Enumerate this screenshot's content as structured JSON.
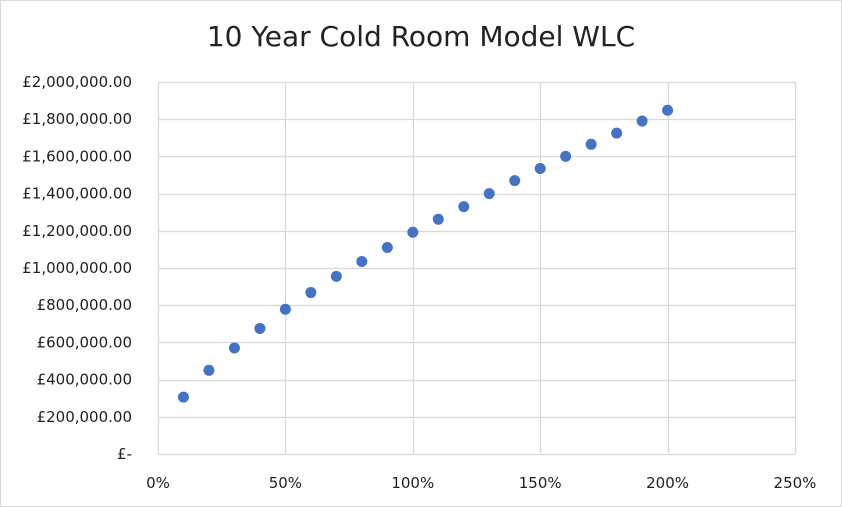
{
  "colors": {
    "marker": "#4472c4",
    "gridline": "#d9d9d9",
    "text": "#1f1f1f",
    "border": "#d9d9d9"
  },
  "chart_data": {
    "type": "scatter",
    "title": "10 Year Cold Room Model WLC",
    "xlabel": "",
    "ylabel": "",
    "xlim": [
      0,
      2.5
    ],
    "ylim": [
      0,
      2000000
    ],
    "grid": true,
    "legend": "none",
    "x_ticks": [
      {
        "value": 0,
        "label": "0%"
      },
      {
        "value": 0.5,
        "label": "50%"
      },
      {
        "value": 1.0,
        "label": "100%"
      },
      {
        "value": 1.5,
        "label": "150%"
      },
      {
        "value": 2.0,
        "label": "200%"
      },
      {
        "value": 2.5,
        "label": "250%"
      }
    ],
    "y_ticks": [
      {
        "value": 0,
        "label": "£-"
      },
      {
        "value": 200000,
        "label": "£200,000.00"
      },
      {
        "value": 400000,
        "label": "£400,000.00"
      },
      {
        "value": 600000,
        "label": "£600,000.00"
      },
      {
        "value": 800000,
        "label": "£800,000.00"
      },
      {
        "value": 1000000,
        "label": "£1,000,000.00"
      },
      {
        "value": 1200000,
        "label": "£1,200,000.00"
      },
      {
        "value": 1400000,
        "label": "£1,400,000.00"
      },
      {
        "value": 1600000,
        "label": "£1,600,000.00"
      },
      {
        "value": 1800000,
        "label": "£1,800,000.00"
      },
      {
        "value": 2000000,
        "label": "£2,000,000.00"
      }
    ],
    "series": [
      {
        "x": [
          0.1,
          0.2,
          0.3,
          0.4,
          0.5,
          0.6,
          0.7,
          0.8,
          0.9,
          1.0,
          1.1,
          1.2,
          1.3,
          1.4,
          1.5,
          1.6,
          1.7,
          1.8,
          1.9,
          2.0
        ],
        "y": [
          306000,
          450000,
          570000,
          675000,
          778000,
          868000,
          955000,
          1035000,
          1110000,
          1192000,
          1262000,
          1330000,
          1400000,
          1470000,
          1535000,
          1600000,
          1665000,
          1725000,
          1790000,
          1848000
        ]
      }
    ]
  }
}
